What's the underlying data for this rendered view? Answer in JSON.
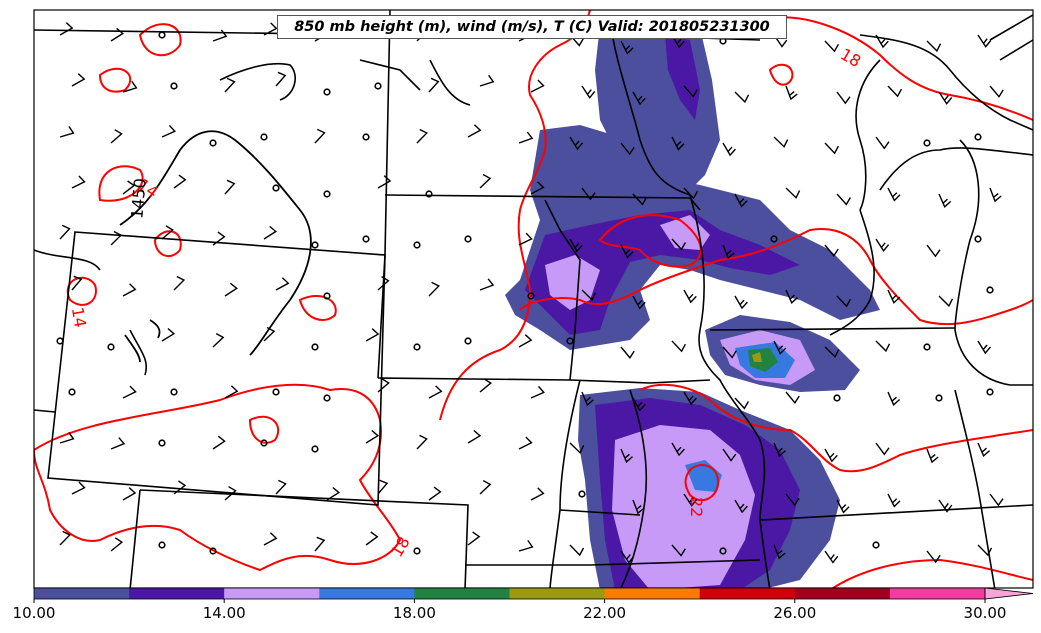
{
  "title": "850 mb height (m), wind (m/s), T (C) Valid: 201805231300",
  "colors": {
    "fill_levels": [
      "#4b4f9e",
      "#4a18a4",
      "#c89af8",
      "#3679e0",
      "#218242",
      "#9a9a12",
      "#ff7a00",
      "#d0000a",
      "#a0001e",
      "#f43ba0",
      "#f6a6d6"
    ],
    "temperature_contour": "#ff0000",
    "height_contour": "#000000",
    "boundaries": "#000000"
  },
  "colorbar": {
    "min": 10,
    "max": 32,
    "step": 2,
    "extend": "max",
    "tick_labels": [
      "10.00",
      "14.00",
      "18.00",
      "22.00",
      "26.00",
      "30.00"
    ]
  },
  "contour_labels": [
    {
      "text": "14",
      "kind": "temperature"
    },
    {
      "text": "1450",
      "kind": "height"
    },
    {
      "text": "14",
      "kind": "temperature"
    },
    {
      "text": "18",
      "kind": "temperature"
    },
    {
      "text": "18",
      "kind": "temperature"
    },
    {
      "text": "22",
      "kind": "temperature"
    }
  ],
  "icons": {
    "wind": "wind-barb-icon",
    "calm": "calm-wind-circle-icon"
  }
}
